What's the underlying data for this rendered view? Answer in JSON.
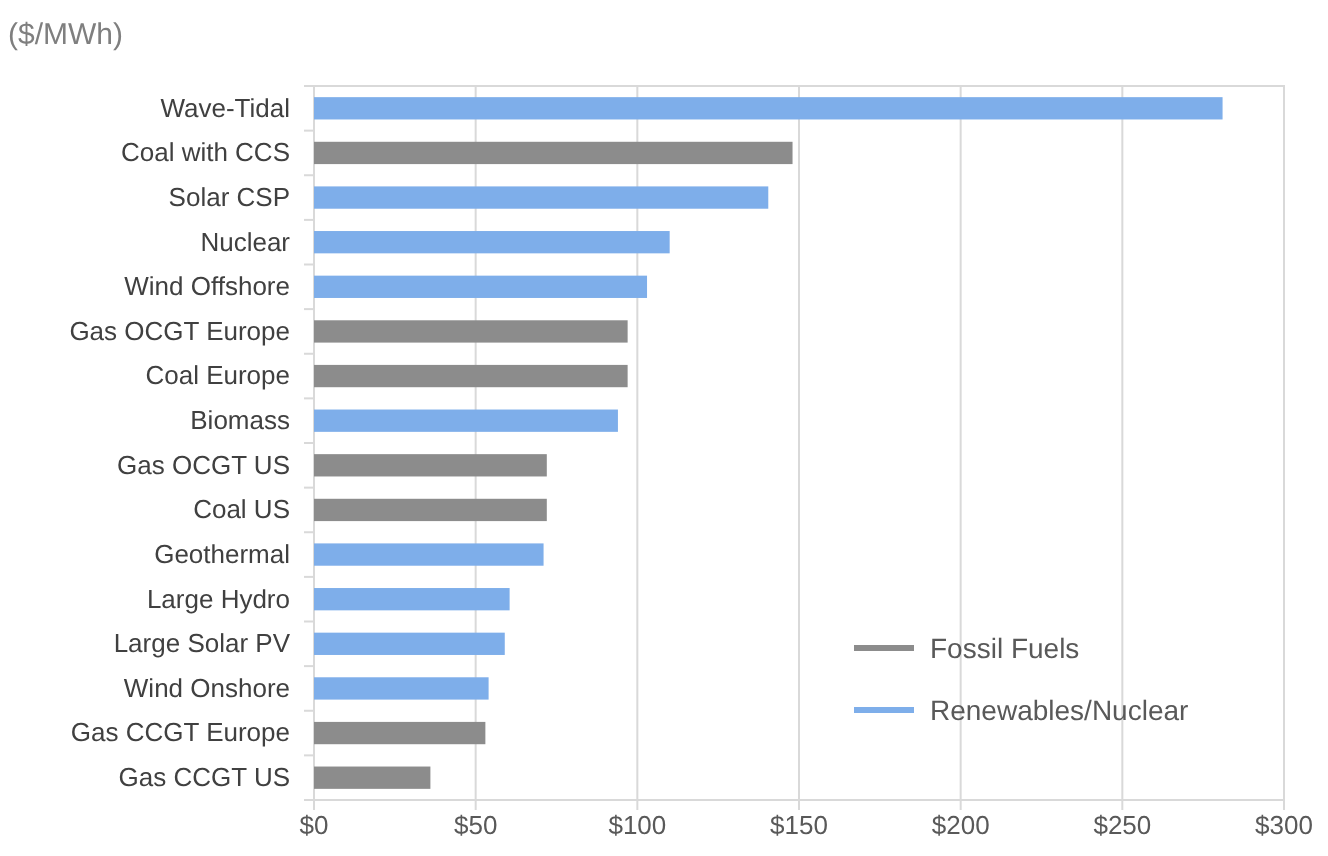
{
  "chart_data": {
    "type": "bar",
    "orientation": "horizontal",
    "xlabel": "($/MWh)",
    "categories": [
      "Wave-Tidal",
      "Coal with CCS",
      "Solar CSP",
      "Nuclear",
      "Wind Offshore",
      "Gas OCGT Europe",
      "Coal Europe",
      "Biomass",
      "Gas OCGT US",
      "Coal US",
      "Geothermal",
      "Large Hydro",
      "Large Solar PV",
      "Wind Onshore",
      "Gas CCGT Europe",
      "Gas CCGT US"
    ],
    "series": [
      {
        "name": "Fossil Fuels",
        "color": "#8c8c8c",
        "values": [
          null,
          148,
          null,
          null,
          null,
          97,
          97,
          null,
          72,
          72,
          null,
          null,
          null,
          null,
          53,
          36
        ]
      },
      {
        "name": "Renewables/Nuclear",
        "color": "#7eaeea",
        "values": [
          281,
          null,
          140.5,
          110,
          103,
          null,
          null,
          94,
          null,
          null,
          71,
          60.5,
          59,
          54,
          null,
          null
        ]
      }
    ],
    "xlim": [
      0,
      300
    ],
    "xticks": [
      {
        "value": 0,
        "label": "$0"
      },
      {
        "value": 50,
        "label": "$50"
      },
      {
        "value": 100,
        "label": "$100"
      },
      {
        "value": 150,
        "label": "$150"
      },
      {
        "value": 200,
        "label": "$200"
      },
      {
        "value": 250,
        "label": "$250"
      },
      {
        "value": 300,
        "label": "$300"
      }
    ],
    "grid": "x",
    "legend": "bottom right"
  }
}
